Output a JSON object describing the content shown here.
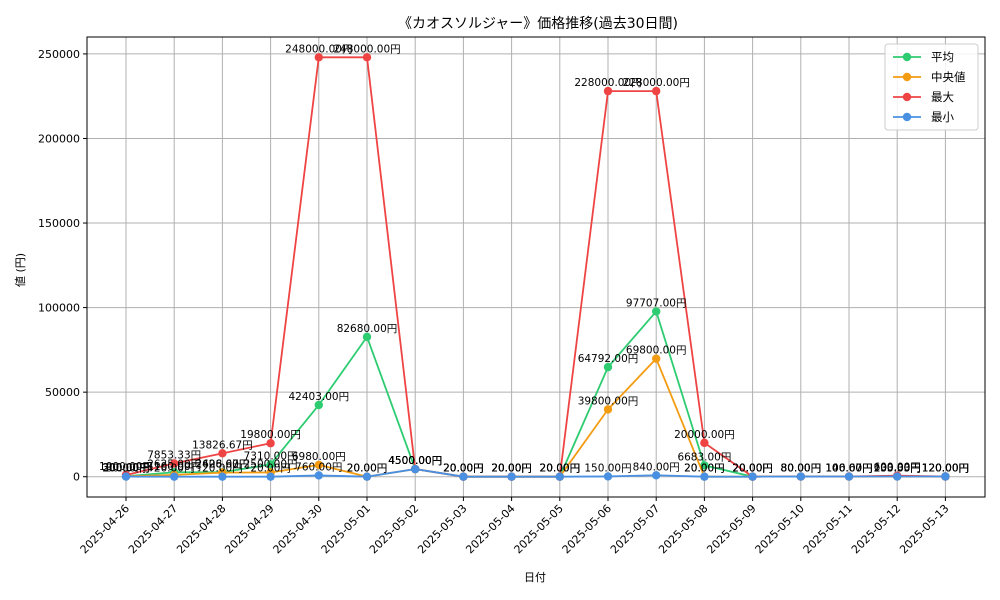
{
  "chart_data": {
    "type": "line",
    "title": "《カオスソルジャー》価格推移(過去30日間)",
    "xlabel": "日付",
    "ylabel": "値 (円)",
    "ylim": [
      -12000,
      260000
    ],
    "yticks": [
      0,
      50000,
      100000,
      150000,
      200000,
      250000
    ],
    "ytick_labels": [
      "0",
      "50000",
      "100000",
      "150000",
      "200000",
      "250000"
    ],
    "grid": true,
    "legend_position": "top-right",
    "categories": [
      "2025-04-26",
      "2025-04-27",
      "2025-04-28",
      "2025-04-29",
      "2025-04-30",
      "2025-05-01",
      "2025-05-02",
      "2025-05-03",
      "2025-05-04",
      "2025-05-05",
      "2025-05-06",
      "2025-05-07",
      "2025-05-08",
      "2025-05-09",
      "2025-05-10",
      "2025-05-11",
      "2025-05-12",
      "2025-05-13"
    ],
    "series": [
      {
        "name": "平均",
        "color": "#2ecc71",
        "values": [
          300,
          2625,
          2627,
          7310,
          42403,
          82680,
          4500,
          20,
          20,
          20,
          64792,
          97707,
          6683,
          20,
          80,
          106.67,
          233.33,
          120
        ],
        "labels": [
          "300.00円",
          "2625.00円",
          "2626.67円",
          "7310.00円",
          "42403.00円",
          "82680.00円",
          "4500.00円",
          "20.00円",
          "20.00円",
          "20.00円",
          "64792.00円",
          "97707.00円",
          "6683.00円",
          "20.00円",
          "80.00円",
          "106.67円",
          "233.33円",
          "120.00円"
        ]
      },
      {
        "name": "中央値",
        "color": "#f39c12",
        "values": [
          200,
          1100,
          2408,
          2500,
          6980,
          20,
          4500,
          20,
          20,
          20,
          39800,
          69800,
          20,
          20,
          80,
          100,
          100,
          120
        ],
        "labels": [
          "200.00円",
          "1100.00円",
          "2408.00円",
          "2500.00円",
          "6980.00円",
          "20.00円",
          "4500.00円",
          "20.00円",
          "20.00円",
          "20.00円",
          "39800.00円",
          "69800.00円",
          "20.00円",
          "20.00円",
          "80.00円",
          "100.00円",
          "100.00円",
          "120.00円"
        ]
      },
      {
        "name": "最大",
        "color": "#ef4444",
        "values": [
          1000,
          7853.33,
          13826.67,
          19800,
          248000,
          248000,
          4500,
          20,
          20,
          20,
          228000,
          228000,
          20000,
          20,
          80,
          140,
          600,
          120
        ],
        "labels": [
          "1000.00円",
          "7853.33円",
          "13826.67円",
          "19800.00円",
          "248000.00円",
          "248000.00円",
          "4500.00円",
          "20.00円",
          "20.00円",
          "20.00円",
          "228000.00円",
          "228000.00円",
          "20000.00円",
          "20.00円",
          "80.00円",
          "140.00円",
          "600.00円",
          "120.00円"
        ]
      },
      {
        "name": "最小",
        "color": "#4a90e2",
        "values": [
          80,
          20,
          20,
          20,
          760,
          20,
          4500,
          20,
          20,
          20,
          150,
          840,
          20,
          20,
          80,
          100,
          100,
          120
        ],
        "labels": [
          "80.00円",
          "20.00円",
          "20.00円",
          "20.00円",
          "760.00円",
          "20.00円",
          "4500.00円",
          "20.00円",
          "20.00円",
          "20.00円",
          "150.00円",
          "840.00円",
          "20.00円",
          "20.00円",
          "80.00円",
          "100.00円",
          "100.00円",
          "120.00円"
        ]
      }
    ]
  }
}
